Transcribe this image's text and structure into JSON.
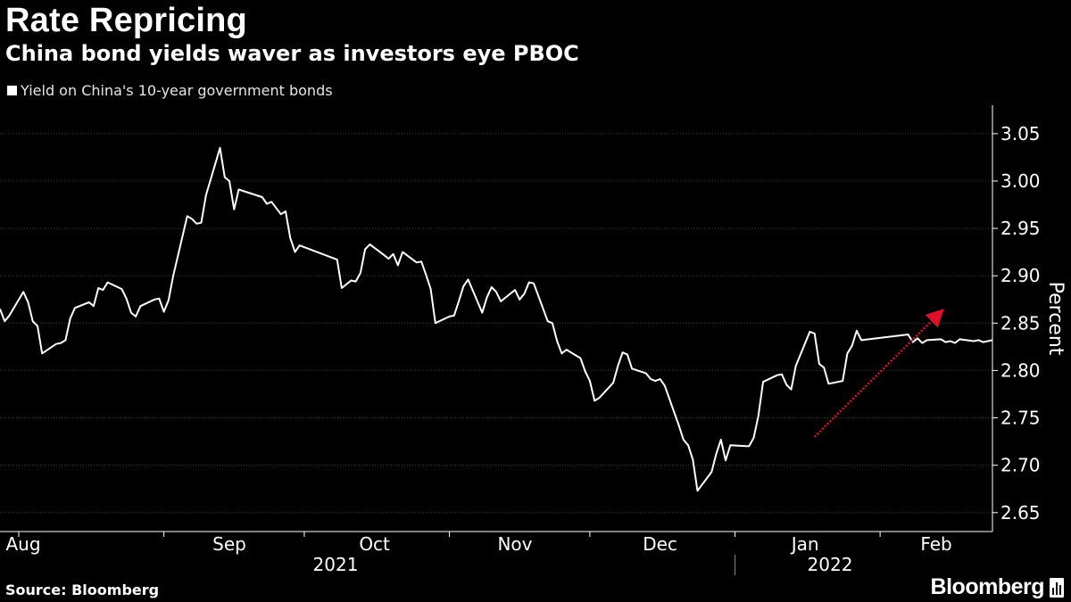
{
  "title": "Rate Repricing",
  "subtitle": "China bond yields waver as investors eye PBOC",
  "legend": {
    "label": "Yield on China's 10-year government bonds",
    "color": "#ffffff"
  },
  "source": "Source: Bloomberg",
  "brand": "Bloomberg",
  "colors": {
    "background": "#000000",
    "line": "#ffffff",
    "arrow": "#e0102a",
    "grid": "#3a3a3a"
  },
  "chart_data": {
    "type": "line",
    "ylabel": "Percent",
    "y_axis_side": "right",
    "ylim": [
      2.63,
      3.08
    ],
    "y_ticks": [
      "2.65",
      "2.70",
      "2.75",
      "2.80",
      "2.85",
      "2.90",
      "2.95",
      "3.00",
      "3.05"
    ],
    "grid": true,
    "month_labels": [
      "Aug",
      "Sep",
      "Oct",
      "Nov",
      "Dec",
      "Jan",
      "Feb"
    ],
    "year_labels": [
      "2021",
      "2022"
    ],
    "x_start": "2021-07-28",
    "x_end": "2022-02-25",
    "series": [
      {
        "name": "Yield on China's 10-year government bonds",
        "x": [
          "2021-07-28",
          "2021-07-29",
          "2021-07-30",
          "2021-08-02",
          "2021-08-03",
          "2021-08-04",
          "2021-08-05",
          "2021-08-06",
          "2021-08-09",
          "2021-08-10",
          "2021-08-11",
          "2021-08-12",
          "2021-08-13",
          "2021-08-16",
          "2021-08-17",
          "2021-08-18",
          "2021-08-19",
          "2021-08-20",
          "2021-08-23",
          "2021-08-24",
          "2021-08-25",
          "2021-08-26",
          "2021-08-27",
          "2021-08-30",
          "2021-08-31",
          "2021-09-01",
          "2021-09-02",
          "2021-09-03",
          "2021-09-06",
          "2021-09-07",
          "2021-09-08",
          "2021-09-09",
          "2021-09-10",
          "2021-09-13",
          "2021-09-14",
          "2021-09-15",
          "2021-09-16",
          "2021-09-17",
          "2021-09-22",
          "2021-09-23",
          "2021-09-24",
          "2021-09-26",
          "2021-09-27",
          "2021-09-28",
          "2021-09-29",
          "2021-09-30",
          "2021-10-08",
          "2021-10-09",
          "2021-10-11",
          "2021-10-12",
          "2021-10-13",
          "2021-10-14",
          "2021-10-15",
          "2021-10-18",
          "2021-10-19",
          "2021-10-20",
          "2021-10-21",
          "2021-10-22",
          "2021-10-25",
          "2021-10-26",
          "2021-10-27",
          "2021-10-28",
          "2021-10-29",
          "2021-11-01",
          "2021-11-02",
          "2021-11-03",
          "2021-11-04",
          "2021-11-05",
          "2021-11-08",
          "2021-11-09",
          "2021-11-10",
          "2021-11-11",
          "2021-11-12",
          "2021-11-15",
          "2021-11-16",
          "2021-11-17",
          "2021-11-18",
          "2021-11-19",
          "2021-11-22",
          "2021-11-23",
          "2021-11-24",
          "2021-11-25",
          "2021-11-26",
          "2021-11-29",
          "2021-11-30",
          "2021-12-01",
          "2021-12-02",
          "2021-12-03",
          "2021-12-06",
          "2021-12-07",
          "2021-12-08",
          "2021-12-09",
          "2021-12-10",
          "2021-12-13",
          "2021-12-14",
          "2021-12-15",
          "2021-12-16",
          "2021-12-17",
          "2021-12-20",
          "2021-12-21",
          "2021-12-22",
          "2021-12-23",
          "2021-12-24",
          "2021-12-27",
          "2021-12-28",
          "2021-12-29",
          "2021-12-30",
          "2021-12-31",
          "2022-01-04",
          "2022-01-05",
          "2022-01-06",
          "2022-01-07",
          "2022-01-10",
          "2022-01-11",
          "2022-01-12",
          "2022-01-13",
          "2022-01-14",
          "2022-01-17",
          "2022-01-18",
          "2022-01-19",
          "2022-01-20",
          "2022-01-21",
          "2022-01-24",
          "2022-01-25",
          "2022-01-26",
          "2022-01-27",
          "2022-01-28",
          "2022-02-07",
          "2022-02-08",
          "2022-02-09",
          "2022-02-10",
          "2022-02-11",
          "2022-02-14",
          "2022-02-15",
          "2022-02-16",
          "2022-02-17",
          "2022-02-18",
          "2022-02-21",
          "2022-02-22",
          "2022-02-23",
          "2022-02-24",
          "2022-02-25"
        ],
        "values": [
          2.865,
          2.852,
          2.858,
          2.883,
          2.872,
          2.852,
          2.847,
          2.818,
          2.828,
          2.829,
          2.832,
          2.855,
          2.866,
          2.872,
          2.868,
          2.887,
          2.885,
          2.893,
          2.886,
          2.876,
          2.861,
          2.857,
          2.868,
          2.875,
          2.876,
          2.862,
          2.874,
          2.9,
          2.963,
          2.96,
          2.955,
          2.956,
          2.985,
          3.035,
          3.004,
          3.0,
          2.97,
          2.991,
          2.983,
          2.976,
          2.978,
          2.965,
          2.968,
          2.94,
          2.925,
          2.932,
          2.917,
          2.887,
          2.895,
          2.894,
          2.903,
          2.928,
          2.933,
          2.922,
          2.918,
          2.923,
          2.911,
          2.925,
          2.914,
          2.915,
          2.901,
          2.886,
          2.85,
          2.857,
          2.858,
          2.873,
          2.889,
          2.896,
          2.861,
          2.877,
          2.888,
          2.883,
          2.873,
          2.885,
          2.875,
          2.881,
          2.893,
          2.892,
          2.852,
          2.85,
          2.831,
          2.818,
          2.822,
          2.813,
          2.799,
          2.789,
          2.768,
          2.771,
          2.787,
          2.805,
          2.819,
          2.817,
          2.802,
          2.797,
          2.791,
          2.789,
          2.791,
          2.784,
          2.742,
          2.727,
          2.721,
          2.706,
          2.673,
          2.693,
          2.712,
          2.727,
          2.705,
          2.721,
          2.72,
          2.729,
          2.752,
          2.788,
          2.795,
          2.796,
          2.785,
          2.78,
          2.805,
          2.841,
          2.839,
          2.807,
          2.803,
          2.786,
          2.789,
          2.818,
          2.826,
          2.842,
          2.832,
          2.838,
          2.83,
          2.834,
          2.829,
          2.832,
          2.833,
          2.83,
          2.831,
          2.829,
          2.833,
          2.831,
          2.832,
          2.83,
          2.831,
          2.832
        ]
      }
    ],
    "annotations": [
      {
        "type": "arrow",
        "style": "dotted",
        "color": "#e0102a",
        "from": {
          "x": "2022-01-18",
          "y": 2.73
        },
        "to": {
          "x": "2022-02-14",
          "y": 2.862
        }
      }
    ]
  }
}
